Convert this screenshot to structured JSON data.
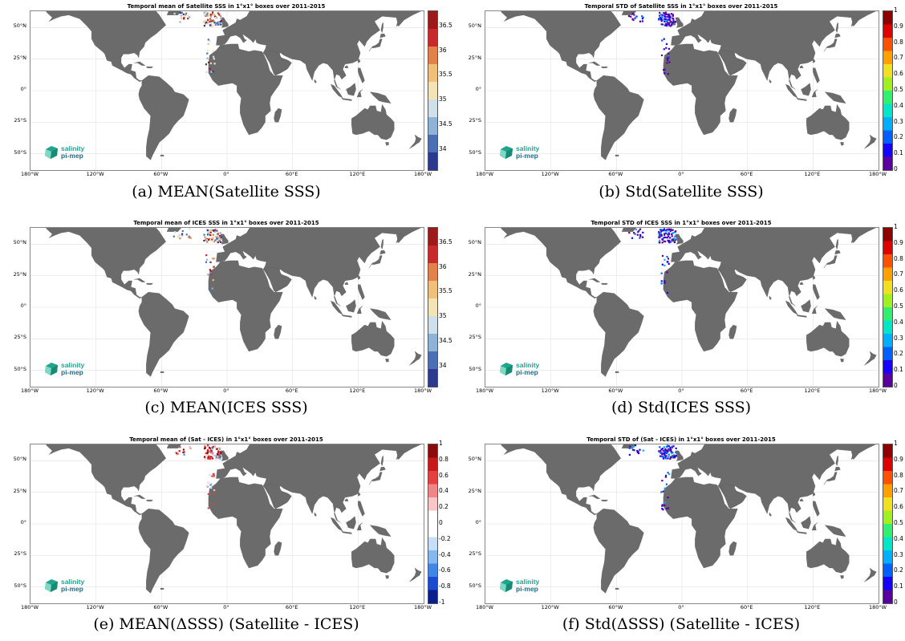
{
  "panels": [
    {
      "id": "a",
      "title": "Temporal mean of Satellite SSS in 1°x1° boxes over 2011-2015",
      "caption": "(a) MEAN(Satellite SSS)",
      "colormap": "blue-yellow-red",
      "colors": [
        "#2b3a8f",
        "#4a6fb5",
        "#8fb3d6",
        "#cfe0ea",
        "#f3e3b6",
        "#f0bf7a",
        "#e3814a",
        "#c82a2b",
        "#9e1a1a"
      ],
      "colorbar_ticks": [
        "36.5",
        "36",
        "35.5",
        "35",
        "34.5",
        "34"
      ],
      "pixel_color": "#5b8ccc"
    },
    {
      "id": "b",
      "title": "Temporal STD of Satellite SSS in 1°x1° boxes over 2011-2015",
      "caption": "(b) Std(Satellite SSS)",
      "colormap": "jet",
      "colors": [
        "#5a00a0",
        "#1800ff",
        "#0060ff",
        "#00b0ff",
        "#00e6c8",
        "#30f070",
        "#a0f020",
        "#f0e020",
        "#ffa000",
        "#ff5000",
        "#e00000",
        "#900000"
      ],
      "colorbar_ticks": [
        "1",
        "0.9",
        "0.8",
        "0.7",
        "0.6",
        "0.5",
        "0.4",
        "0.3",
        "0.2",
        "0.1",
        "0"
      ],
      "pixel_color": "#1a10f0"
    },
    {
      "id": "c",
      "title": "Temporal mean of ICES SSS in 1°x1° boxes over 2011-2015",
      "caption": "(c) MEAN(ICES SSS)",
      "colormap": "blue-yellow-red",
      "colors": [
        "#2b3a8f",
        "#4a6fb5",
        "#8fb3d6",
        "#cfe0ea",
        "#f3e3b6",
        "#f0bf7a",
        "#e3814a",
        "#c82a2b",
        "#9e1a1a"
      ],
      "colorbar_ticks": [
        "36.5",
        "36",
        "35.5",
        "35",
        "34.5",
        "34"
      ],
      "pixel_color": "#5b8ccc"
    },
    {
      "id": "d",
      "title": "Temporal STD of ICES SSS in 1°x1° boxes over 2011-2015",
      "caption": "(d) Std(ICES SSS)",
      "colormap": "jet",
      "colors": [
        "#5a00a0",
        "#1800ff",
        "#0060ff",
        "#00b0ff",
        "#00e6c8",
        "#30f070",
        "#a0f020",
        "#f0e020",
        "#ffa000",
        "#ff5000",
        "#e00000",
        "#900000"
      ],
      "colorbar_ticks": [
        "1",
        "0.9",
        "0.8",
        "0.7",
        "0.6",
        "0.5",
        "0.4",
        "0.3",
        "0.2",
        "0.1",
        "0"
      ],
      "pixel_color": "#1a10f0"
    },
    {
      "id": "e",
      "title": "Temporal mean of (Sat - ICES) in 1°x1° boxes over 2011-2015",
      "caption": "(e) MEAN(ΔSSS) (Satellite - ICES)",
      "colormap": "blue-white-red",
      "colors": [
        "#0b1e8c",
        "#1a4ad0",
        "#3f86e6",
        "#86b8f0",
        "#c6def8",
        "#ffffff",
        "#ffffff",
        "#f8c6c6",
        "#f08686",
        "#e63f3f",
        "#c81a1a",
        "#8c0b0b"
      ],
      "colorbar_ticks": [
        "1",
        "0.8",
        "0.6",
        "0.4",
        "0.2",
        "0",
        "-0.2",
        "-0.4",
        "-0.6",
        "-0.8",
        "-1"
      ],
      "pixel_color": "#e02020"
    },
    {
      "id": "f",
      "title": "Temporal STD of (Sat - ICES) in 1°x1° boxes over 2011-2015",
      "caption": "(f) Std(ΔSSS) (Satellite - ICES)",
      "colormap": "jet",
      "colors": [
        "#5a00a0",
        "#1800ff",
        "#0060ff",
        "#00b0ff",
        "#00e6c8",
        "#30f070",
        "#a0f020",
        "#f0e020",
        "#ffa000",
        "#ff5000",
        "#e00000",
        "#900000"
      ],
      "colorbar_ticks": [
        "1",
        "0.9",
        "0.8",
        "0.7",
        "0.6",
        "0.5",
        "0.4",
        "0.3",
        "0.2",
        "0.1",
        "0"
      ],
      "pixel_color": "#1a10f0"
    }
  ],
  "lat_ticks": [
    "50°N",
    "25°N",
    "0°",
    "25°S",
    "50°S"
  ],
  "lon_ticks": [
    "180°W",
    "120°W",
    "60°W",
    "0°",
    "60°E",
    "120°E",
    "180°W"
  ],
  "logo": {
    "line1": "salinity",
    "line2": "pi-mep"
  },
  "land_color": "#6b6b6b"
}
